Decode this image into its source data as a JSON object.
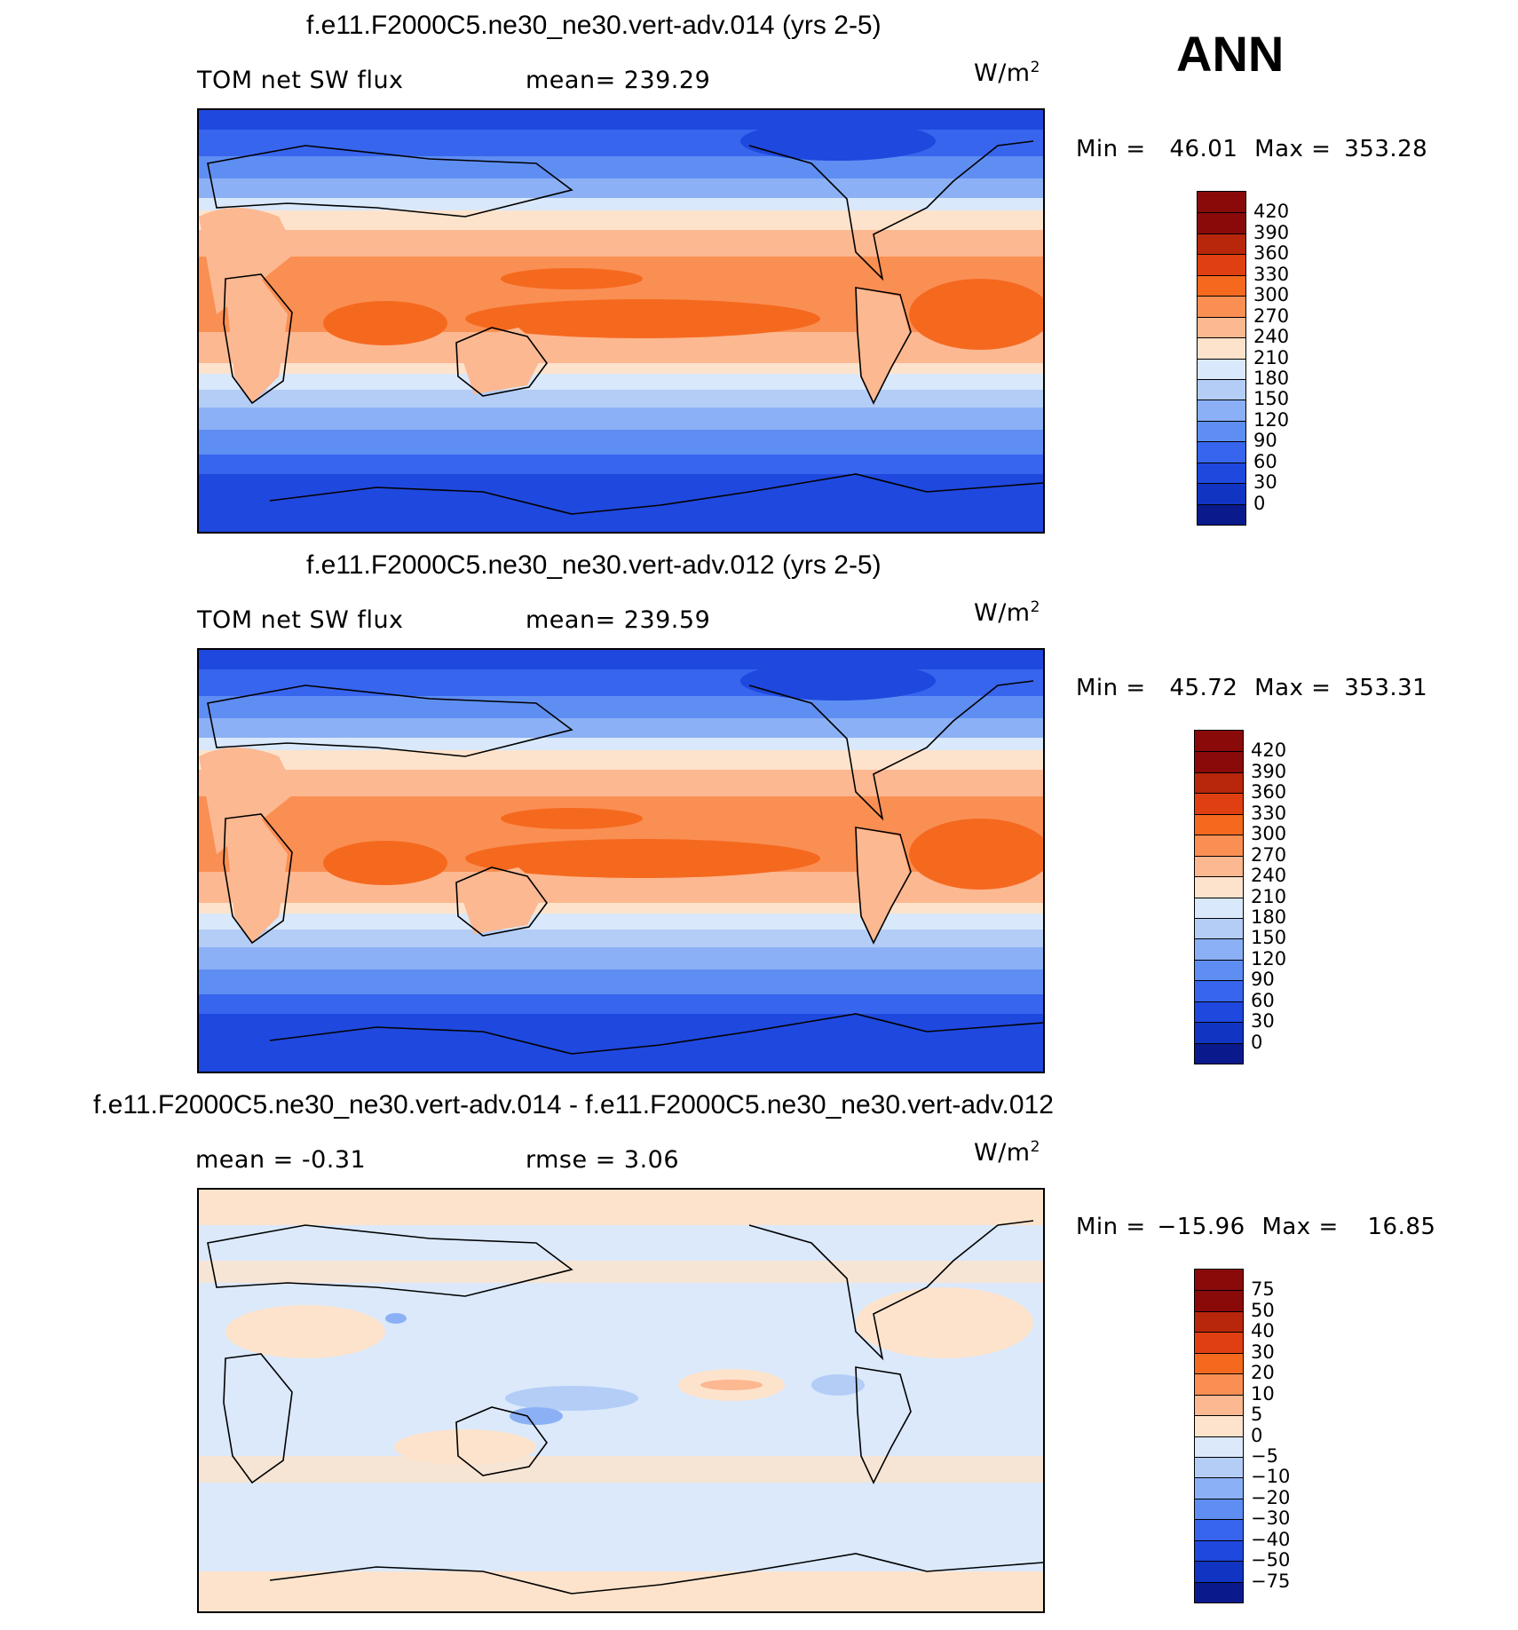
{
  "season": "ANN",
  "panels": [
    {
      "title": "f.e11.F2000C5.ne30_ne30.vert-adv.014 (yrs 2-5)",
      "left_label": "TOM net SW flux",
      "center_label": "mean= 239.29",
      "units": "W/m",
      "units_sup": "2",
      "min_label": "Min =",
      "min_value": "46.01",
      "max_label": "Max =",
      "max_value": "353.28",
      "colorbar": {
        "colors": [
          "#8a0a0a",
          "#b8260c",
          "#e03f12",
          "#f5691f",
          "#fa8f53",
          "#fcb891",
          "#fde3cc",
          "#d9e8fa",
          "#b3cdf7",
          "#8bb0f5",
          "#5f8ef3",
          "#3765ee",
          "#1f48de",
          "#1135c2",
          "#0a1a8c"
        ],
        "labels": [
          "420",
          "390",
          "360",
          "330",
          "300",
          "270",
          "240",
          "210",
          "180",
          "150",
          "120",
          "90",
          "60",
          "30",
          "0"
        ]
      }
    },
    {
      "title": "f.e11.F2000C5.ne30_ne30.vert-adv.012 (yrs 2-5)",
      "left_label": "TOM net SW flux",
      "center_label": "mean= 239.59",
      "units": "W/m",
      "units_sup": "2",
      "min_label": "Min =",
      "min_value": "45.72",
      "max_label": "Max =",
      "max_value": "353.31",
      "colorbar": {
        "colors": [
          "#8a0a0a",
          "#b8260c",
          "#e03f12",
          "#f5691f",
          "#fa8f53",
          "#fcb891",
          "#fde3cc",
          "#d9e8fa",
          "#b3cdf7",
          "#8bb0f5",
          "#5f8ef3",
          "#3765ee",
          "#1f48de",
          "#1135c2",
          "#0a1a8c"
        ],
        "labels": [
          "420",
          "390",
          "360",
          "330",
          "300",
          "270",
          "240",
          "210",
          "180",
          "150",
          "120",
          "90",
          "60",
          "30",
          "0"
        ]
      }
    },
    {
      "title": "f.e11.F2000C5.ne30_ne30.vert-adv.014 - f.e11.F2000C5.ne30_ne30.vert-adv.012",
      "left_label": "mean = -0.31",
      "center_label": "rmse = 3.06",
      "units": "W/m",
      "units_sup": "2",
      "min_label": "Min =",
      "min_value": "−15.96",
      "max_label": "Max =",
      "max_value": "16.85",
      "colorbar": {
        "colors": [
          "#8a0a0a",
          "#b8260c",
          "#e03f12",
          "#f5691f",
          "#fa8f53",
          "#fcb891",
          "#fde3cc",
          "#dbe9fb",
          "#b3cdf7",
          "#8bb0f5",
          "#5f8ef3",
          "#3765ee",
          "#1f48de",
          "#1135c2",
          "#0a1a8c"
        ],
        "labels": [
          "75",
          "50",
          "40",
          "30",
          "20",
          "10",
          "5",
          "0",
          "−5",
          "−10",
          "−20",
          "−30",
          "−40",
          "−50",
          "−75"
        ]
      }
    }
  ]
}
